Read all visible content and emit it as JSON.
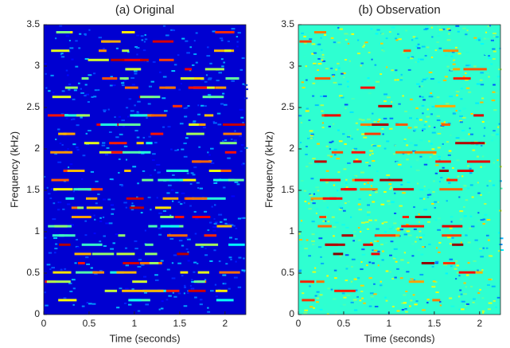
{
  "chart_data": [
    {
      "type": "spectrogram",
      "title": "(a) Original",
      "xlabel": "Time (seconds)",
      "ylabel": "Frequency (kHz)",
      "xlim": [
        0,
        2.23
      ],
      "ylim": [
        0,
        3.5
      ],
      "xticks": [
        0,
        0.5,
        1,
        1.5,
        2
      ],
      "yticks": [
        0,
        0.5,
        1,
        1.5,
        2,
        2.5,
        3,
        3.5
      ],
      "colormap": "jet"
    },
    {
      "type": "spectrogram",
      "title": "(b) Observation",
      "xlabel": "Time (seconds)",
      "ylabel": "Frequency (kHz)",
      "xlim": [
        0,
        2.23
      ],
      "ylim": [
        0,
        3.5
      ],
      "xticks": [
        0,
        0.5,
        1,
        1.5,
        2
      ],
      "yticks": [
        0,
        0.5,
        1,
        1.5,
        2,
        2.5,
        3,
        3.5
      ],
      "colormap": "jet"
    }
  ]
}
